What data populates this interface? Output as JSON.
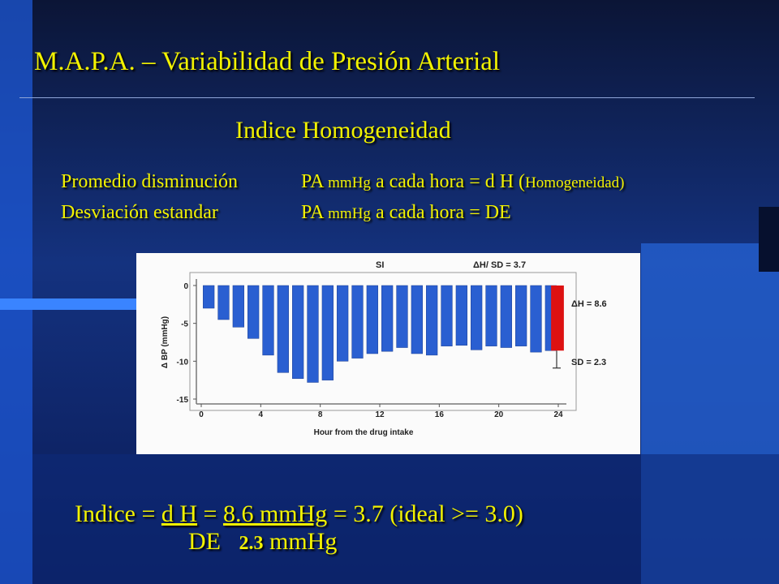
{
  "slide": {
    "title": "M.A.P.A. – Variabilidad de Presión Arterial",
    "subtitle": "Indice Homogeneidad",
    "definitions": [
      {
        "label": "Promedio disminución",
        "text_a": "PA ",
        "unit": "mmHg",
        "text_b": " a cada hora = d H (",
        "text_small": "Homogeneidad)"
      },
      {
        "label": "Desviación estandar",
        "text_a": "PA ",
        "unit": "mmHg",
        "text_b": " a cada hora = DE",
        "text_small": ""
      }
    ],
    "formula": {
      "lead": "Indice = ",
      "numerator": "d H",
      "eq1": " = ",
      "value": "8.6 mmHg",
      "result": "  = 3.7   (ideal >= 3.0)",
      "denominator": "DE",
      "den_value": "2.3",
      "den_unit": " mmHg"
    },
    "colors": {
      "text": "#f2f200",
      "background": "#0d1a45",
      "bar": "#2a5fd1",
      "highlight_bar": "#dd1111"
    }
  },
  "chart_data": {
    "type": "bar",
    "title": "SI",
    "xlabel": "Hour from the drug intake",
    "ylabel": "Δ BP (mmHg)",
    "ylim": [
      -15,
      0
    ],
    "xlim": [
      0,
      24
    ],
    "x_ticks": [
      "0",
      "4",
      "8",
      "12",
      "16",
      "20",
      "24"
    ],
    "y_ticks": [
      "0",
      "-5",
      "-10",
      "-15"
    ],
    "categories": [
      0,
      1,
      2,
      3,
      4,
      5,
      6,
      7,
      8,
      9,
      10,
      11,
      12,
      13,
      14,
      15,
      16,
      17,
      18,
      19,
      20,
      21,
      22,
      23
    ],
    "values": [
      -3.0,
      -4.5,
      -5.5,
      -7.0,
      -9.2,
      -11.5,
      -12.3,
      -12.8,
      -12.5,
      -10.0,
      -9.6,
      -9.0,
      -8.7,
      -8.2,
      -9.0,
      -9.2,
      -8.0,
      -7.9,
      -8.5,
      -8.0,
      -8.2,
      -8.0,
      -8.8,
      -8.6
    ],
    "dh_bar": {
      "x": 24,
      "value": -8.6,
      "label": "ΔH = 8.6"
    },
    "sd": {
      "value": 2.3,
      "label": "SD = 2.3"
    },
    "annotation": "ΔH/ SD = 3.7",
    "grid": false
  }
}
